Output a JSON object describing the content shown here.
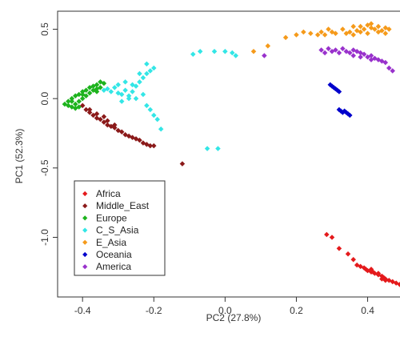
{
  "chart_data": {
    "type": "scatter",
    "title": "",
    "xlabel": "PC2 (27.8%)",
    "ylabel": "PC1 (52.3%)",
    "xlim": [
      -0.47,
      0.52
    ],
    "ylim": [
      -1.43,
      0.63
    ],
    "x_ticks": [
      -0.4,
      -0.2,
      0.0,
      0.2,
      0.4
    ],
    "x_tick_labels": [
      "-0.4",
      "-0.2",
      "0.0",
      "0.2",
      "0.4"
    ],
    "y_ticks": [
      0.5,
      0.0,
      -0.5,
      -1.0
    ],
    "y_tick_labels": [
      "0.5",
      "0.0",
      "-0.5",
      "-1.0"
    ],
    "grid": false,
    "legend_position": "bottom-left",
    "series": [
      {
        "name": "Africa",
        "color": "#e41a1c",
        "points": [
          [
            0.285,
            -0.98
          ],
          [
            0.3,
            -1.0
          ],
          [
            0.32,
            -1.08
          ],
          [
            0.345,
            -1.12
          ],
          [
            0.36,
            -1.16
          ],
          [
            0.37,
            -1.2
          ],
          [
            0.38,
            -1.21
          ],
          [
            0.39,
            -1.22
          ],
          [
            0.395,
            -1.23
          ],
          [
            0.4,
            -1.24
          ],
          [
            0.41,
            -1.25
          ],
          [
            0.415,
            -1.25
          ],
          [
            0.42,
            -1.26
          ],
          [
            0.43,
            -1.27
          ],
          [
            0.44,
            -1.28
          ],
          [
            0.445,
            -1.29
          ],
          [
            0.45,
            -1.3
          ],
          [
            0.46,
            -1.31
          ],
          [
            0.47,
            -1.32
          ],
          [
            0.48,
            -1.33
          ],
          [
            0.49,
            -1.34
          ],
          [
            0.5,
            -1.35
          ],
          [
            0.45,
            -1.31
          ],
          [
            0.43,
            -1.26
          ],
          [
            0.41,
            -1.23
          ],
          [
            0.44,
            -1.3
          ]
        ]
      },
      {
        "name": "Middle_East",
        "color": "#8b1a1a",
        "points": [
          [
            -0.4,
            -0.05
          ],
          [
            -0.39,
            -0.08
          ],
          [
            -0.38,
            -0.1
          ],
          [
            -0.37,
            -0.12
          ],
          [
            -0.36,
            -0.14
          ],
          [
            -0.35,
            -0.15
          ],
          [
            -0.34,
            -0.17
          ],
          [
            -0.33,
            -0.19
          ],
          [
            -0.32,
            -0.2
          ],
          [
            -0.31,
            -0.21
          ],
          [
            -0.3,
            -0.23
          ],
          [
            -0.29,
            -0.24
          ],
          [
            -0.28,
            -0.26
          ],
          [
            -0.27,
            -0.27
          ],
          [
            -0.26,
            -0.28
          ],
          [
            -0.25,
            -0.29
          ],
          [
            -0.24,
            -0.3
          ],
          [
            -0.23,
            -0.32
          ],
          [
            -0.22,
            -0.33
          ],
          [
            -0.21,
            -0.34
          ],
          [
            -0.2,
            -0.34
          ],
          [
            -0.38,
            -0.08
          ],
          [
            -0.36,
            -0.11
          ],
          [
            -0.34,
            -0.13
          ],
          [
            -0.33,
            -0.16
          ],
          [
            -0.31,
            -0.19
          ],
          [
            -0.12,
            -0.47
          ]
        ]
      },
      {
        "name": "Europe",
        "color": "#1db31d",
        "points": [
          [
            -0.45,
            -0.04
          ],
          [
            -0.44,
            -0.05
          ],
          [
            -0.44,
            -0.02
          ],
          [
            -0.43,
            -0.06
          ],
          [
            -0.43,
            0.0
          ],
          [
            -0.42,
            -0.04
          ],
          [
            -0.42,
            0.02
          ],
          [
            -0.41,
            -0.02
          ],
          [
            -0.41,
            0.03
          ],
          [
            -0.4,
            0.0
          ],
          [
            -0.4,
            0.05
          ],
          [
            -0.39,
            0.02
          ],
          [
            -0.39,
            0.06
          ],
          [
            -0.38,
            0.04
          ],
          [
            -0.38,
            0.08
          ],
          [
            -0.37,
            0.06
          ],
          [
            -0.37,
            0.09
          ],
          [
            -0.36,
            0.07
          ],
          [
            -0.36,
            0.1
          ],
          [
            -0.35,
            0.08
          ],
          [
            -0.35,
            0.12
          ],
          [
            -0.43,
            -0.02
          ],
          [
            -0.42,
            -0.07
          ],
          [
            -0.4,
            0.03
          ],
          [
            -0.34,
            0.11
          ],
          [
            -0.36,
            0.05
          ],
          [
            -0.41,
            -0.06
          ]
        ]
      },
      {
        "name": "C_S_Asia",
        "color": "#33e6e6",
        "points": [
          [
            -0.34,
            0.06
          ],
          [
            -0.33,
            0.07
          ],
          [
            -0.32,
            0.05
          ],
          [
            -0.31,
            0.08
          ],
          [
            -0.3,
            0.04
          ],
          [
            -0.29,
            0.03
          ],
          [
            -0.28,
            0.06
          ],
          [
            -0.27,
            0.02
          ],
          [
            -0.26,
            0.05
          ],
          [
            -0.25,
            0.09
          ],
          [
            -0.24,
            0.12
          ],
          [
            -0.23,
            0.15
          ],
          [
            -0.22,
            0.18
          ],
          [
            -0.21,
            0.2
          ],
          [
            -0.2,
            0.22
          ],
          [
            -0.25,
            0.0
          ],
          [
            -0.23,
            0.03
          ],
          [
            -0.22,
            -0.05
          ],
          [
            -0.21,
            -0.08
          ],
          [
            -0.2,
            -0.12
          ],
          [
            -0.19,
            -0.15
          ],
          [
            -0.18,
            -0.22
          ],
          [
            -0.26,
            0.1
          ],
          [
            -0.24,
            0.18
          ],
          [
            -0.22,
            0.25
          ],
          [
            -0.3,
            0.1
          ],
          [
            -0.28,
            0.12
          ],
          [
            -0.27,
            0.0
          ],
          [
            -0.29,
            -0.02
          ],
          [
            -0.05,
            -0.36
          ],
          [
            -0.02,
            -0.36
          ],
          [
            -0.09,
            0.32
          ],
          [
            -0.07,
            0.34
          ],
          [
            -0.03,
            0.34
          ],
          [
            0.0,
            0.34
          ],
          [
            0.02,
            0.33
          ],
          [
            0.03,
            0.31
          ]
        ]
      },
      {
        "name": "E_Asia",
        "color": "#f59a1a",
        "points": [
          [
            0.08,
            0.34
          ],
          [
            0.12,
            0.38
          ],
          [
            0.17,
            0.44
          ],
          [
            0.2,
            0.46
          ],
          [
            0.22,
            0.48
          ],
          [
            0.24,
            0.47
          ],
          [
            0.26,
            0.46
          ],
          [
            0.27,
            0.48
          ],
          [
            0.28,
            0.46
          ],
          [
            0.29,
            0.5
          ],
          [
            0.3,
            0.48
          ],
          [
            0.31,
            0.47
          ],
          [
            0.33,
            0.5
          ],
          [
            0.35,
            0.48
          ],
          [
            0.36,
            0.46
          ],
          [
            0.37,
            0.49
          ],
          [
            0.38,
            0.52
          ],
          [
            0.39,
            0.5
          ],
          [
            0.4,
            0.53
          ],
          [
            0.41,
            0.51
          ],
          [
            0.42,
            0.5
          ],
          [
            0.43,
            0.52
          ],
          [
            0.44,
            0.49
          ],
          [
            0.45,
            0.51
          ],
          [
            0.46,
            0.5
          ],
          [
            0.38,
            0.48
          ],
          [
            0.4,
            0.47
          ],
          [
            0.43,
            0.48
          ],
          [
            0.36,
            0.52
          ],
          [
            0.41,
            0.54
          ],
          [
            0.45,
            0.47
          ],
          [
            0.34,
            0.47
          ]
        ]
      },
      {
        "name": "Oceania",
        "color": "#0000cc",
        "points": [
          [
            0.295,
            0.1
          ],
          [
            0.3,
            0.09
          ],
          [
            0.305,
            0.08
          ],
          [
            0.31,
            0.07
          ],
          [
            0.315,
            0.06
          ],
          [
            0.32,
            0.05
          ],
          [
            0.32,
            -0.08
          ],
          [
            0.325,
            -0.09
          ],
          [
            0.33,
            -0.1
          ],
          [
            0.335,
            -0.09
          ],
          [
            0.34,
            -0.1
          ],
          [
            0.345,
            -0.11
          ],
          [
            0.35,
            -0.12
          ]
        ]
      },
      {
        "name": "America",
        "color": "#9932cc",
        "points": [
          [
            0.11,
            0.31
          ],
          [
            0.27,
            0.35
          ],
          [
            0.28,
            0.33
          ],
          [
            0.29,
            0.36
          ],
          [
            0.3,
            0.34
          ],
          [
            0.31,
            0.35
          ],
          [
            0.32,
            0.33
          ],
          [
            0.33,
            0.36
          ],
          [
            0.34,
            0.34
          ],
          [
            0.35,
            0.33
          ],
          [
            0.36,
            0.35
          ],
          [
            0.37,
            0.34
          ],
          [
            0.38,
            0.33
          ],
          [
            0.39,
            0.32
          ],
          [
            0.4,
            0.3
          ],
          [
            0.41,
            0.31
          ],
          [
            0.42,
            0.29
          ],
          [
            0.43,
            0.28
          ],
          [
            0.44,
            0.27
          ],
          [
            0.45,
            0.26
          ],
          [
            0.46,
            0.22
          ],
          [
            0.47,
            0.2
          ],
          [
            0.36,
            0.31
          ],
          [
            0.38,
            0.3
          ],
          [
            0.41,
            0.28
          ]
        ]
      }
    ]
  }
}
